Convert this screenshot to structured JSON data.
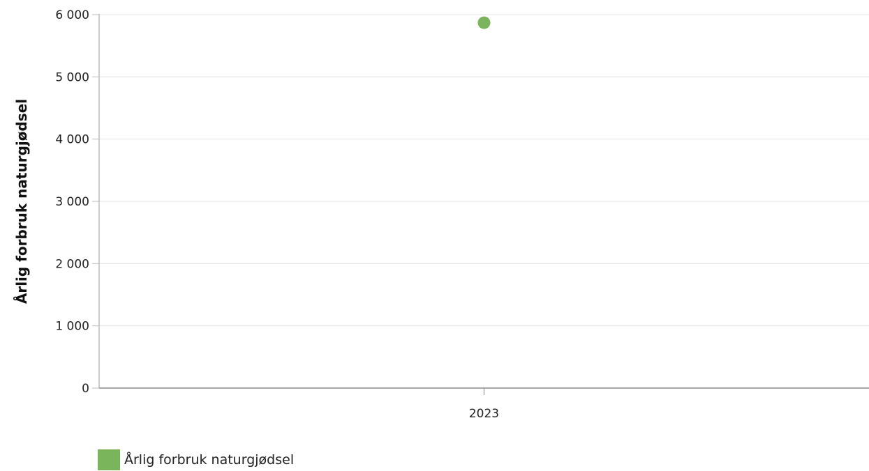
{
  "chart_data": {
    "type": "scatter",
    "categories": [
      "2023"
    ],
    "series": [
      {
        "name": "Årlig forbruk naturgjødsel",
        "color": "#7ab55c",
        "values": [
          5870
        ]
      }
    ],
    "xlabel": "",
    "ylabel": "Årlig forbruk naturgjødsel",
    "ylim": [
      0,
      6000
    ],
    "yticks": [
      0,
      1000,
      2000,
      3000,
      4000,
      5000,
      6000
    ],
    "ytick_labels": [
      "0",
      "1 000",
      "2 000",
      "3 000",
      "4 000",
      "5 000",
      "6 000"
    ],
    "grid": true,
    "legend_position": "bottom-left"
  }
}
